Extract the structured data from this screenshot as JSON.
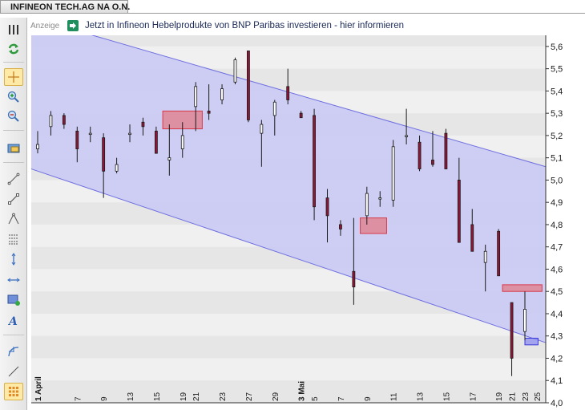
{
  "window": {
    "title": "INFINEON TECH.AG NA O.N."
  },
  "ad": {
    "label": "Anzeige",
    "icon": "bnp-icon",
    "text": "Jetzt in Infineon Hebelprodukte von BNP Paribas investieren - hier informieren"
  },
  "toolbar": [
    "menu-icon",
    "refresh-icon",
    "crosshair-icon",
    "zoom-in-icon",
    "zoom-out-icon",
    "screenshot-icon",
    "trendline-icon",
    "segment-icon",
    "triangle-icon",
    "fibonacci-icon",
    "vertical-line-icon",
    "horizontal-line-icon",
    "rectangle-icon",
    "text-icon",
    "curve-icon",
    "line-icon",
    "palette-icon"
  ],
  "chart_data": {
    "type": "candlestick",
    "y_ticks": [
      "5,6",
      "5,5",
      "5,4",
      "5,3",
      "5,2",
      "5,1",
      "5,0",
      "4,9",
      "4,8",
      "4,7",
      "4,6",
      "4,5",
      "4,4",
      "4,3",
      "4,2",
      "4,1",
      "4,0"
    ],
    "ylim": [
      4.0,
      5.65
    ],
    "x_ticks": [
      {
        "label": "1 April",
        "bold": true
      },
      {
        "label": "7"
      },
      {
        "label": "9"
      },
      {
        "label": "13"
      },
      {
        "label": "15"
      },
      {
        "label": "19"
      },
      {
        "label": "21"
      },
      {
        "label": "23"
      },
      {
        "label": "27"
      },
      {
        "label": "29"
      },
      {
        "label": "3 Mai",
        "bold": true
      },
      {
        "label": "5"
      },
      {
        "label": "7"
      },
      {
        "label": "9"
      },
      {
        "label": "11"
      },
      {
        "label": "13"
      },
      {
        "label": "15"
      },
      {
        "label": "17"
      },
      {
        "label": "19"
      },
      {
        "label": "21"
      },
      {
        "label": "23"
      },
      {
        "label": "25"
      }
    ],
    "candles": [
      {
        "open": 5.14,
        "high": 5.22,
        "low": 5.12,
        "close": 5.16
      },
      {
        "open": 5.24,
        "high": 5.31,
        "low": 5.2,
        "close": 5.29
      },
      {
        "open": 5.29,
        "high": 5.3,
        "low": 5.23,
        "close": 5.25
      },
      {
        "open": 5.22,
        "high": 5.24,
        "low": 5.08,
        "close": 5.14
      },
      {
        "open": 5.21,
        "high": 5.24,
        "low": 5.17,
        "close": 5.21
      },
      {
        "open": 5.19,
        "high": 5.21,
        "low": 4.92,
        "close": 5.04
      },
      {
        "open": 5.04,
        "high": 5.1,
        "low": 5.03,
        "close": 5.07
      },
      {
        "open": 5.21,
        "high": 5.25,
        "low": 5.17,
        "close": 5.21
      },
      {
        "open": 5.26,
        "high": 5.28,
        "low": 5.2,
        "close": 5.24
      },
      {
        "open": 5.22,
        "high": 5.24,
        "low": 5.12,
        "close": 5.12
      },
      {
        "open": 5.09,
        "high": 5.25,
        "low": 5.02,
        "close": 5.1
      },
      {
        "open": 5.14,
        "high": 5.26,
        "low": 5.1,
        "close": 5.2
      },
      {
        "open": 5.33,
        "high": 5.44,
        "low": 5.22,
        "close": 5.42
      },
      {
        "open": 5.31,
        "high": 5.43,
        "low": 5.27,
        "close": 5.3
      },
      {
        "open": 5.36,
        "high": 5.43,
        "low": 5.34,
        "close": 5.41
      },
      {
        "open": 5.44,
        "high": 5.55,
        "low": 5.43,
        "close": 5.54
      },
      {
        "open": 5.58,
        "high": 5.58,
        "low": 5.26,
        "close": 5.27
      },
      {
        "open": 5.21,
        "high": 5.27,
        "low": 5.06,
        "close": 5.25
      },
      {
        "open": 5.29,
        "high": 5.36,
        "low": 5.2,
        "close": 5.35
      },
      {
        "open": 5.42,
        "high": 5.5,
        "low": 5.34,
        "close": 5.36
      },
      {
        "open": 5.3,
        "high": 5.31,
        "low": 5.28,
        "close": 5.28
      },
      {
        "open": 5.29,
        "high": 5.32,
        "low": 4.82,
        "close": 4.88
      },
      {
        "open": 4.92,
        "high": 4.96,
        "low": 4.72,
        "close": 4.84
      },
      {
        "open": 4.8,
        "high": 4.82,
        "low": 4.75,
        "close": 4.78
      },
      {
        "open": 4.59,
        "high": 4.83,
        "low": 4.44,
        "close": 4.52
      },
      {
        "open": 4.84,
        "high": 4.97,
        "low": 4.8,
        "close": 4.94
      },
      {
        "open": 4.92,
        "high": 4.95,
        "low": 4.88,
        "close": 4.92
      },
      {
        "open": 4.91,
        "high": 5.18,
        "low": 4.88,
        "close": 5.15
      },
      {
        "open": 5.2,
        "high": 5.32,
        "low": 5.16,
        "close": 5.2
      },
      {
        "open": 5.17,
        "high": 5.2,
        "low": 5.04,
        "close": 5.05
      },
      {
        "open": 5.09,
        "high": 5.22,
        "low": 5.06,
        "close": 5.07
      },
      {
        "open": 5.21,
        "high": 5.23,
        "low": 5.05,
        "close": 5.05
      },
      {
        "open": 5.0,
        "high": 5.1,
        "low": 4.72,
        "close": 4.72
      },
      {
        "open": 4.8,
        "high": 4.87,
        "low": 4.68,
        "close": 4.68
      },
      {
        "open": 4.63,
        "high": 4.71,
        "low": 4.5,
        "close": 4.68
      },
      {
        "open": 4.77,
        "high": 4.78,
        "low": 4.57,
        "close": 4.57
      },
      {
        "open": 4.45,
        "high": 4.45,
        "low": 4.12,
        "close": 4.2
      },
      {
        "open": 4.32,
        "high": 4.5,
        "low": 4.28,
        "close": 4.42
      }
    ],
    "channel": {
      "upper": [
        [
          0,
          5.73
        ],
        [
          1,
          5.06
        ]
      ],
      "lower": [
        [
          0,
          5.05
        ],
        [
          1,
          4.27
        ]
      ]
    },
    "zones": [
      {
        "kind": "resistance",
        "from": 9.5,
        "to": 12.5,
        "y1": 5.31,
        "y2": 5.23
      },
      {
        "kind": "resistance",
        "from": 24.5,
        "to": 26.5,
        "y1": 4.83,
        "y2": 4.76
      },
      {
        "kind": "resistance",
        "from": 35.3,
        "to": 38.3,
        "y1": 4.53,
        "y2": 4.5
      },
      {
        "kind": "support",
        "from": 37.0,
        "to": 38.0,
        "y1": 4.29,
        "y2": 4.26
      }
    ],
    "colors": {
      "channel_fill": "#c8c8f4",
      "channel_line": "#6f6fe0",
      "bear": "#8e1637",
      "bull": "#ffffff",
      "wick": "#1a1a1a",
      "zone_red": "#e07b86",
      "zone_blue": "#8c8cf0",
      "plot_bg": "#e6e6e6"
    }
  }
}
